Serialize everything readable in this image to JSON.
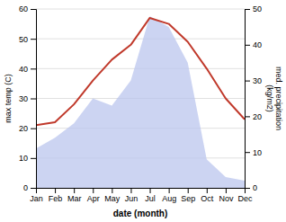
{
  "chart_data": {
    "type": "line",
    "x_label": "date (month)",
    "y_label": "max temp (C)",
    "y2_label": "med. precipitation\n(kg/m2)",
    "categories": [
      "Jan",
      "Feb",
      "Mar",
      "Apr",
      "May",
      "Jun",
      "Jul",
      "Aug",
      "Sep",
      "Oct",
      "Nov",
      "Dec"
    ],
    "series": [
      {
        "type": "area",
        "axis": "y2",
        "color": "#bbc5ee",
        "values": [
          11,
          14,
          18,
          25,
          23,
          30,
          48,
          45,
          35,
          8,
          3,
          2
        ]
      },
      {
        "type": "line",
        "color": "#c0392b",
        "values": [
          21,
          22,
          28,
          36,
          43,
          48,
          57,
          55,
          49,
          40,
          30,
          23
        ]
      }
    ],
    "ylim": [
      0,
      60
    ],
    "yticks": [
      0,
      10,
      20,
      30,
      40,
      50,
      60
    ],
    "y2lim": [
      0,
      50
    ],
    "y2ticks": [
      0,
      10,
      20,
      30,
      40,
      50
    ],
    "grid": true
  }
}
